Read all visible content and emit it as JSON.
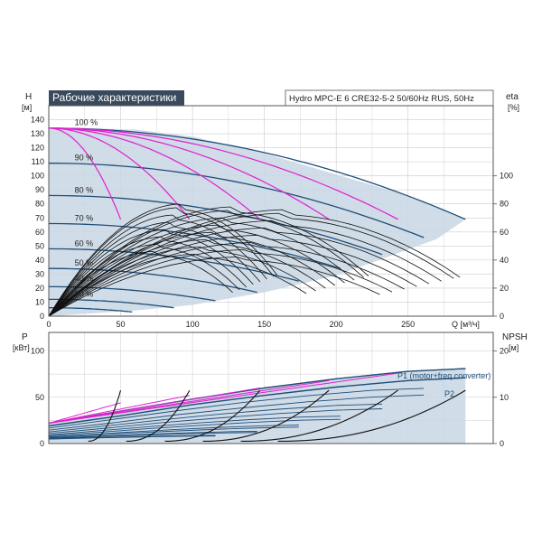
{
  "chart_data": {
    "type": "line",
    "title": "Рабочие характеристики",
    "model_label": "Hydro MPC-E 6 CRE32-5-2 50/60Hz RUS, 50Hz",
    "colors": {
      "frame": "#555555",
      "grid": "#cccccc",
      "envelope_fill": "#c8d6e3",
      "speed_curve": "#1f4e79",
      "eta_curve": "#e020d0",
      "npsh_curve": "#111111",
      "title_bg": "#3a4a5c",
      "title_text": "#ffffff"
    },
    "head_panel": {
      "ylabel": "H",
      "yunit": "[м]",
      "y2label": "eta",
      "y2unit": "[%]",
      "xlabel": "Q [м³/ч]",
      "xlim": [
        0,
        300
      ],
      "ylim": [
        0,
        150
      ],
      "x_ticks": [
        0,
        50,
        100,
        150,
        200,
        250
      ],
      "y_ticks": [
        0,
        10,
        20,
        30,
        40,
        50,
        60,
        70,
        80,
        90,
        100,
        110,
        120,
        130,
        140
      ],
      "y2_ticks": [
        0,
        20,
        40,
        60,
        80,
        100
      ],
      "y2lim": [
        0,
        150
      ],
      "speed_labels": [
        {
          "text": "100 %",
          "q": 18,
          "h": 136
        },
        {
          "text": "90 %",
          "q": 18,
          "h": 111
        },
        {
          "text": "80 %",
          "q": 18,
          "h": 88
        },
        {
          "text": "70 %",
          "q": 18,
          "h": 68
        },
        {
          "text": "60 %",
          "q": 18,
          "h": 50
        },
        {
          "text": "50 %",
          "q": 18,
          "h": 36
        },
        {
          "text": "40 %",
          "q": 18,
          "h": 25
        },
        {
          "text": "30 %",
          "q": 18,
          "h": 14
        }
      ],
      "speed_curves": [
        {
          "speed": 100,
          "shutoff": 134,
          "q_end": 290,
          "h_end": 69
        },
        {
          "speed": 90,
          "shutoff": 109,
          "q_end": 261,
          "h_end": 56
        },
        {
          "speed": 80,
          "shutoff": 86,
          "q_end": 232,
          "h_end": 44
        },
        {
          "speed": 70,
          "shutoff": 66,
          "q_end": 203,
          "h_end": 34
        },
        {
          "speed": 60,
          "shutoff": 48,
          "q_end": 174,
          "h_end": 25
        },
        {
          "speed": 50,
          "shutoff": 34,
          "q_end": 145,
          "h_end": 17
        },
        {
          "speed": 40,
          "shutoff": 21,
          "q_end": 116,
          "h_end": 11
        },
        {
          "speed": 30,
          "shutoff": 12,
          "q_end": 87,
          "h_end": 6
        },
        {
          "speed": 20,
          "shutoff": 6,
          "q_end": 58,
          "h_end": 3
        }
      ],
      "pump_count_curves": [
        {
          "pumps": 1,
          "shutoff": 134,
          "q_end": 50,
          "h_end": 69
        },
        {
          "pumps": 2,
          "shutoff": 134,
          "q_end": 98,
          "h_end": 69
        },
        {
          "pumps": 3,
          "shutoff": 134,
          "q_end": 147,
          "h_end": 69
        },
        {
          "pumps": 4,
          "shutoff": 134,
          "q_end": 195,
          "h_end": 69
        },
        {
          "pumps": 5,
          "shutoff": 134,
          "q_end": 243,
          "h_end": 69
        }
      ],
      "envelope": {
        "q": [
          0,
          20,
          60,
          100,
          150,
          200,
          250,
          290,
          270,
          200,
          150,
          100,
          60,
          30,
          15,
          5,
          0
        ],
        "h": [
          134,
          134,
          133,
          128,
          116,
          101,
          86,
          69,
          55,
          29,
          17,
          8,
          4,
          2,
          1,
          0,
          0
        ]
      },
      "eta_curves": {
        "scale": [
          0.35,
          0.45,
          0.55,
          0.65,
          0.75,
          0.85,
          0.95,
          1.0
        ],
        "peak_q": 170,
        "peak_eta": 80
      }
    },
    "power_panel": {
      "ylabel": "P",
      "yunit": "[кВт]",
      "y2label": "NPSH",
      "y2unit": "[м]",
      "xlim": [
        0,
        300
      ],
      "ylim": [
        0,
        120
      ],
      "y_ticks": [
        0,
        50,
        100
      ],
      "y2_ticks": [
        0,
        10,
        20
      ],
      "y2lim": [
        0,
        24
      ],
      "legend": [
        "P1 (motor+freq.converter)",
        "P2"
      ],
      "p1_envelope": {
        "q": [
          0,
          50,
          100,
          150,
          200,
          250,
          290
        ],
        "p": [
          22,
          35,
          48,
          60,
          70,
          78,
          81
        ]
      },
      "p2_envelope": {
        "q": [
          0,
          50,
          100,
          150,
          200,
          250,
          290
        ],
        "p": [
          19,
          30,
          42,
          52,
          61,
          68,
          71
        ]
      },
      "power_curves": {
        "speeds": [
          1.0,
          0.9,
          0.8,
          0.7,
          0.6,
          0.5,
          0.4
        ]
      },
      "npsh_curves": {
        "q_end": [
          50,
          98,
          147,
          195,
          243,
          290
        ],
        "npsh_end": [
          11,
          11,
          11,
          11,
          11,
          11
        ]
      }
    }
  }
}
